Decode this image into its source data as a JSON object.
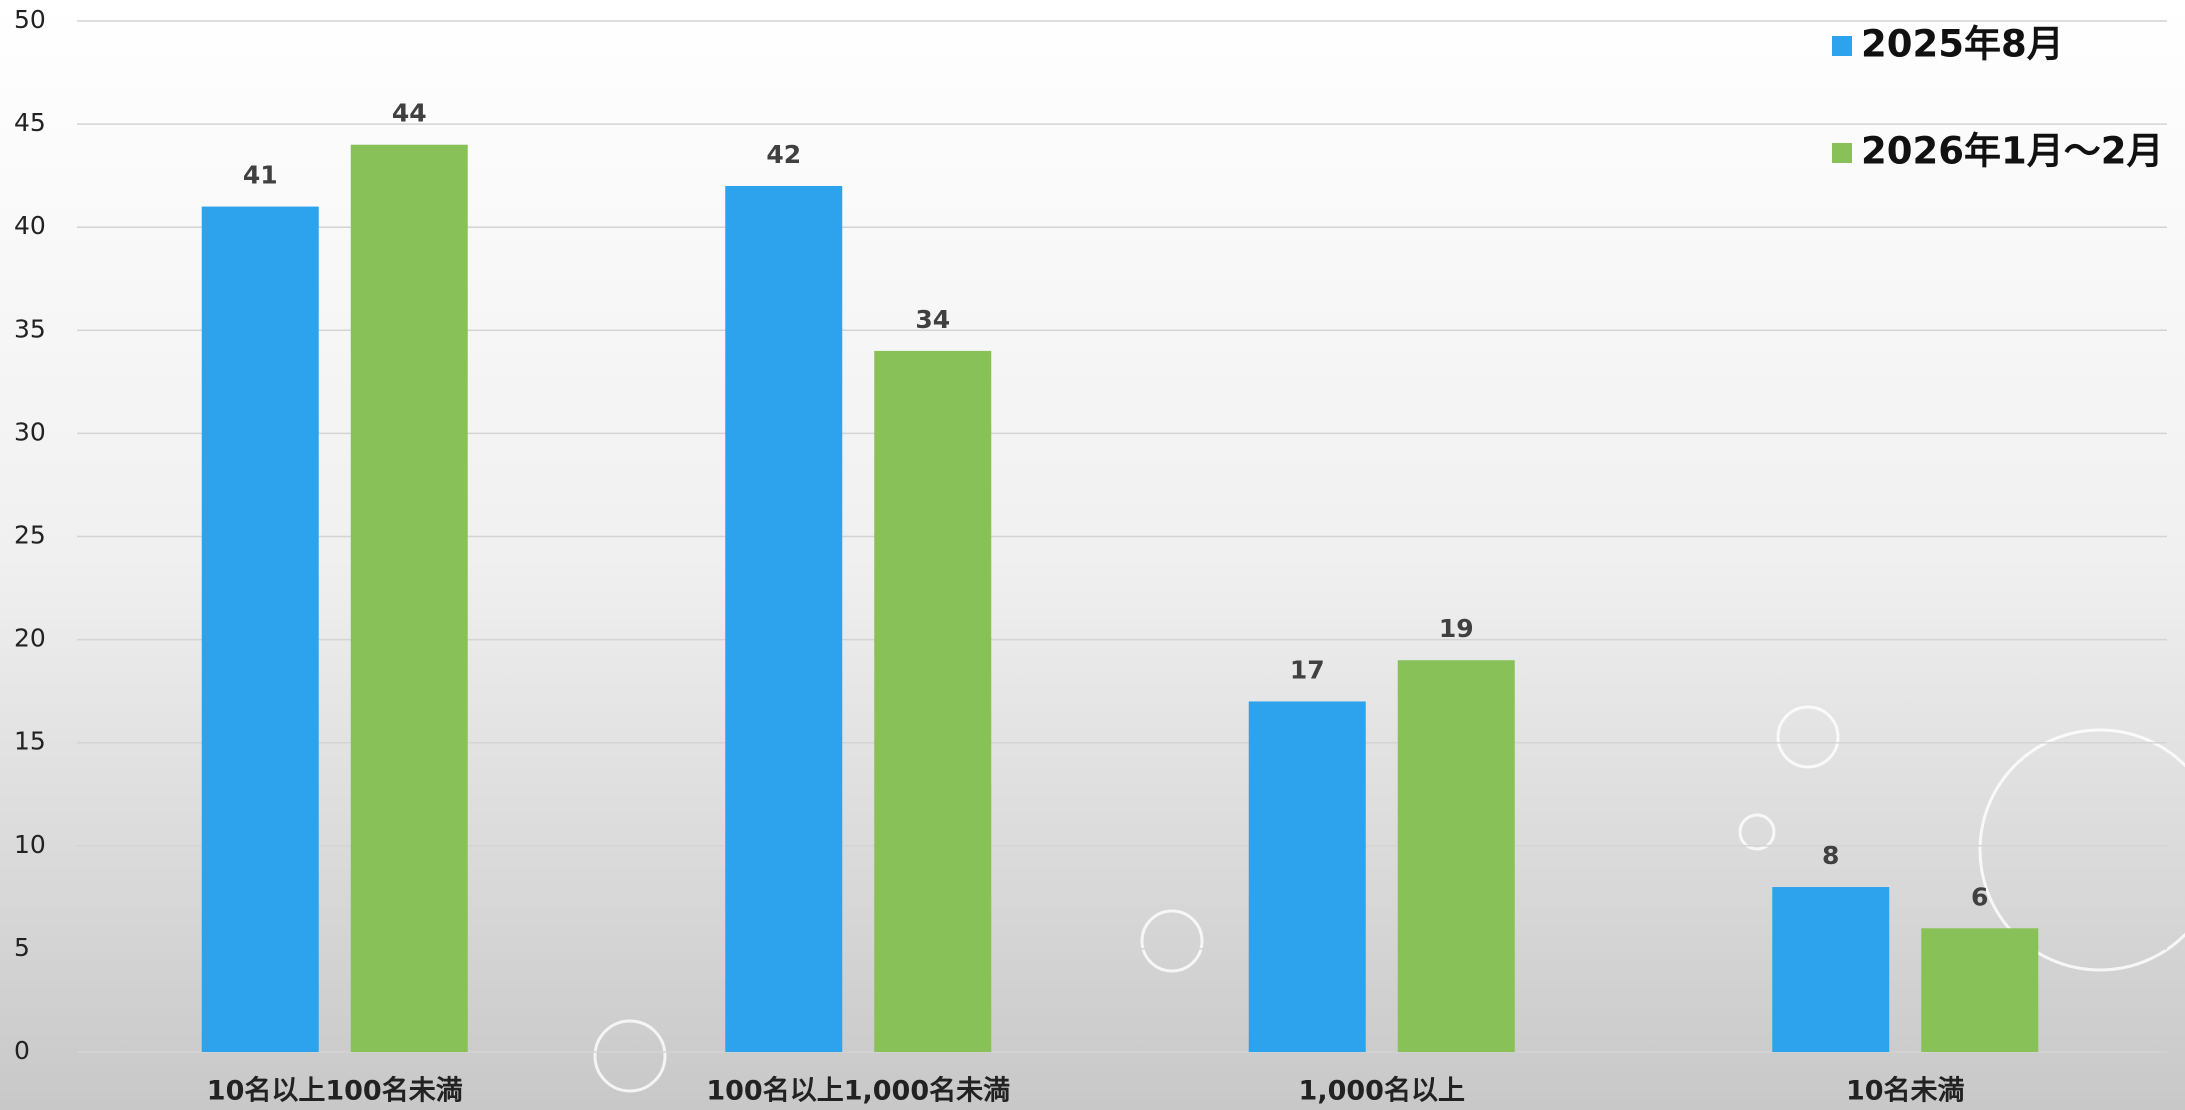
{
  "chart_data": {
    "type": "bar",
    "categories": [
      "10名以上100名未満",
      "100名以上1,000名未満",
      "1,000名以上",
      "10名未満"
    ],
    "series": [
      {
        "name": "2025年8月",
        "color": "#2ea3ed",
        "values": [
          41,
          42,
          17,
          8
        ]
      },
      {
        "name": "2026年1月～2月",
        "color": "#88c157",
        "values": [
          44,
          34,
          19,
          6
        ]
      }
    ],
    "ylim": [
      0,
      50
    ],
    "yticks": [
      0,
      5,
      10,
      15,
      20,
      25,
      30,
      35,
      40,
      45,
      50
    ],
    "grid": true,
    "legend": "top-right"
  }
}
